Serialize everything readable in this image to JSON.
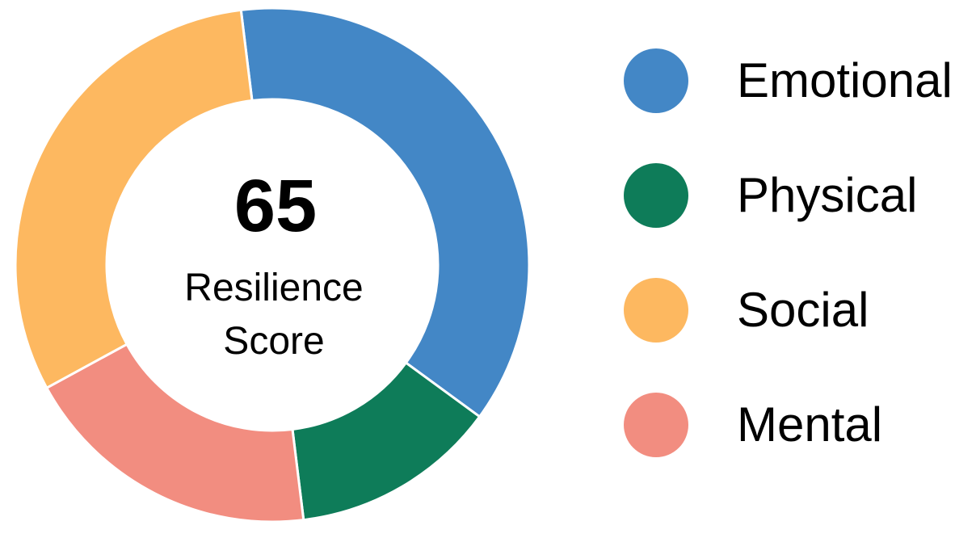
{
  "chart_data": {
    "type": "pie",
    "center_value": "65",
    "center_label_lines": [
      "Resilience",
      "Score"
    ],
    "categories": [
      "Emotional",
      "Physical",
      "Social",
      "Mental"
    ],
    "values": [
      37,
      13,
      31,
      19
    ],
    "colors": [
      "#4387C6",
      "#0E7C59",
      "#FDB860",
      "#F28D80"
    ],
    "legend_position": "right",
    "slice_order": [
      "Emotional",
      "Physical",
      "Mental",
      "Social"
    ]
  }
}
